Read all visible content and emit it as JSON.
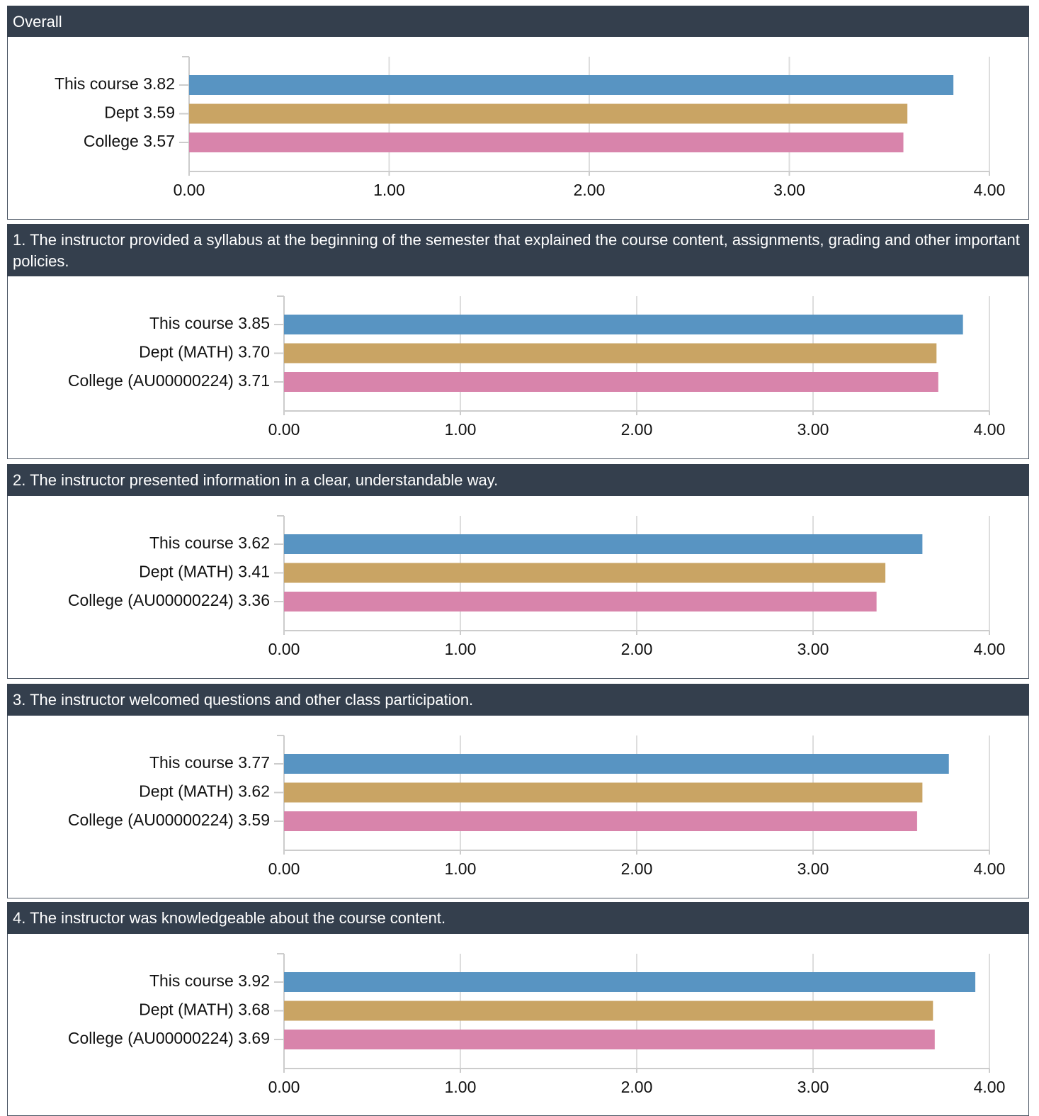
{
  "chart_data": [
    {
      "type": "hbar",
      "title": "Overall",
      "categories": [
        "This course 3.82",
        "Dept 3.59",
        "College 3.57"
      ],
      "values": [
        3.82,
        3.59,
        3.57
      ],
      "colors": [
        "#5894c2",
        "#c9a464",
        "#d884ab"
      ],
      "xlim": [
        0,
        4
      ],
      "xticks": [
        {
          "value": 0,
          "label": "0.00"
        },
        {
          "value": 1,
          "label": "1.00"
        },
        {
          "value": 2,
          "label": "2.00"
        },
        {
          "value": 3,
          "label": "3.00"
        },
        {
          "value": 4,
          "label": "4.00"
        }
      ],
      "grid": true
    },
    {
      "type": "hbar",
      "title": "1. The instructor provided a syllabus at the beginning of the semester that explained the course content, assignments, grading and other important policies.",
      "categories": [
        "This course 3.85",
        "Dept (MATH) 3.70",
        "College (AU00000224) 3.71"
      ],
      "values": [
        3.85,
        3.7,
        3.71
      ],
      "colors": [
        "#5894c2",
        "#c9a464",
        "#d884ab"
      ],
      "xlim": [
        0,
        4
      ],
      "xticks": [
        {
          "value": 0,
          "label": "0.00"
        },
        {
          "value": 1,
          "label": "1.00"
        },
        {
          "value": 2,
          "label": "2.00"
        },
        {
          "value": 3,
          "label": "3.00"
        },
        {
          "value": 4,
          "label": "4.00"
        }
      ],
      "grid": true
    },
    {
      "type": "hbar",
      "title": "2. The instructor presented information in a clear, understandable way.",
      "categories": [
        "This course 3.62",
        "Dept (MATH) 3.41",
        "College (AU00000224) 3.36"
      ],
      "values": [
        3.62,
        3.41,
        3.36
      ],
      "colors": [
        "#5894c2",
        "#c9a464",
        "#d884ab"
      ],
      "xlim": [
        0,
        4
      ],
      "xticks": [
        {
          "value": 0,
          "label": "0.00"
        },
        {
          "value": 1,
          "label": "1.00"
        },
        {
          "value": 2,
          "label": "2.00"
        },
        {
          "value": 3,
          "label": "3.00"
        },
        {
          "value": 4,
          "label": "4.00"
        }
      ],
      "grid": true
    },
    {
      "type": "hbar",
      "title": "3. The instructor welcomed questions and other class participation.",
      "categories": [
        "This course 3.77",
        "Dept (MATH) 3.62",
        "College (AU00000224) 3.59"
      ],
      "values": [
        3.77,
        3.62,
        3.59
      ],
      "colors": [
        "#5894c2",
        "#c9a464",
        "#d884ab"
      ],
      "xlim": [
        0,
        4
      ],
      "xticks": [
        {
          "value": 0,
          "label": "0.00"
        },
        {
          "value": 1,
          "label": "1.00"
        },
        {
          "value": 2,
          "label": "2.00"
        },
        {
          "value": 3,
          "label": "3.00"
        },
        {
          "value": 4,
          "label": "4.00"
        }
      ],
      "grid": true
    },
    {
      "type": "hbar",
      "title": "4. The instructor was knowledgeable about the course content.",
      "categories": [
        "This course 3.92",
        "Dept (MATH) 3.68",
        "College (AU00000224) 3.69"
      ],
      "values": [
        3.92,
        3.68,
        3.69
      ],
      "colors": [
        "#5894c2",
        "#c9a464",
        "#d884ab"
      ],
      "xlim": [
        0,
        4
      ],
      "xticks": [
        {
          "value": 0,
          "label": "0.00"
        },
        {
          "value": 1,
          "label": "1.00"
        },
        {
          "value": 2,
          "label": "2.00"
        },
        {
          "value": 3,
          "label": "3.00"
        },
        {
          "value": 4,
          "label": "4.00"
        }
      ],
      "grid": true
    }
  ]
}
